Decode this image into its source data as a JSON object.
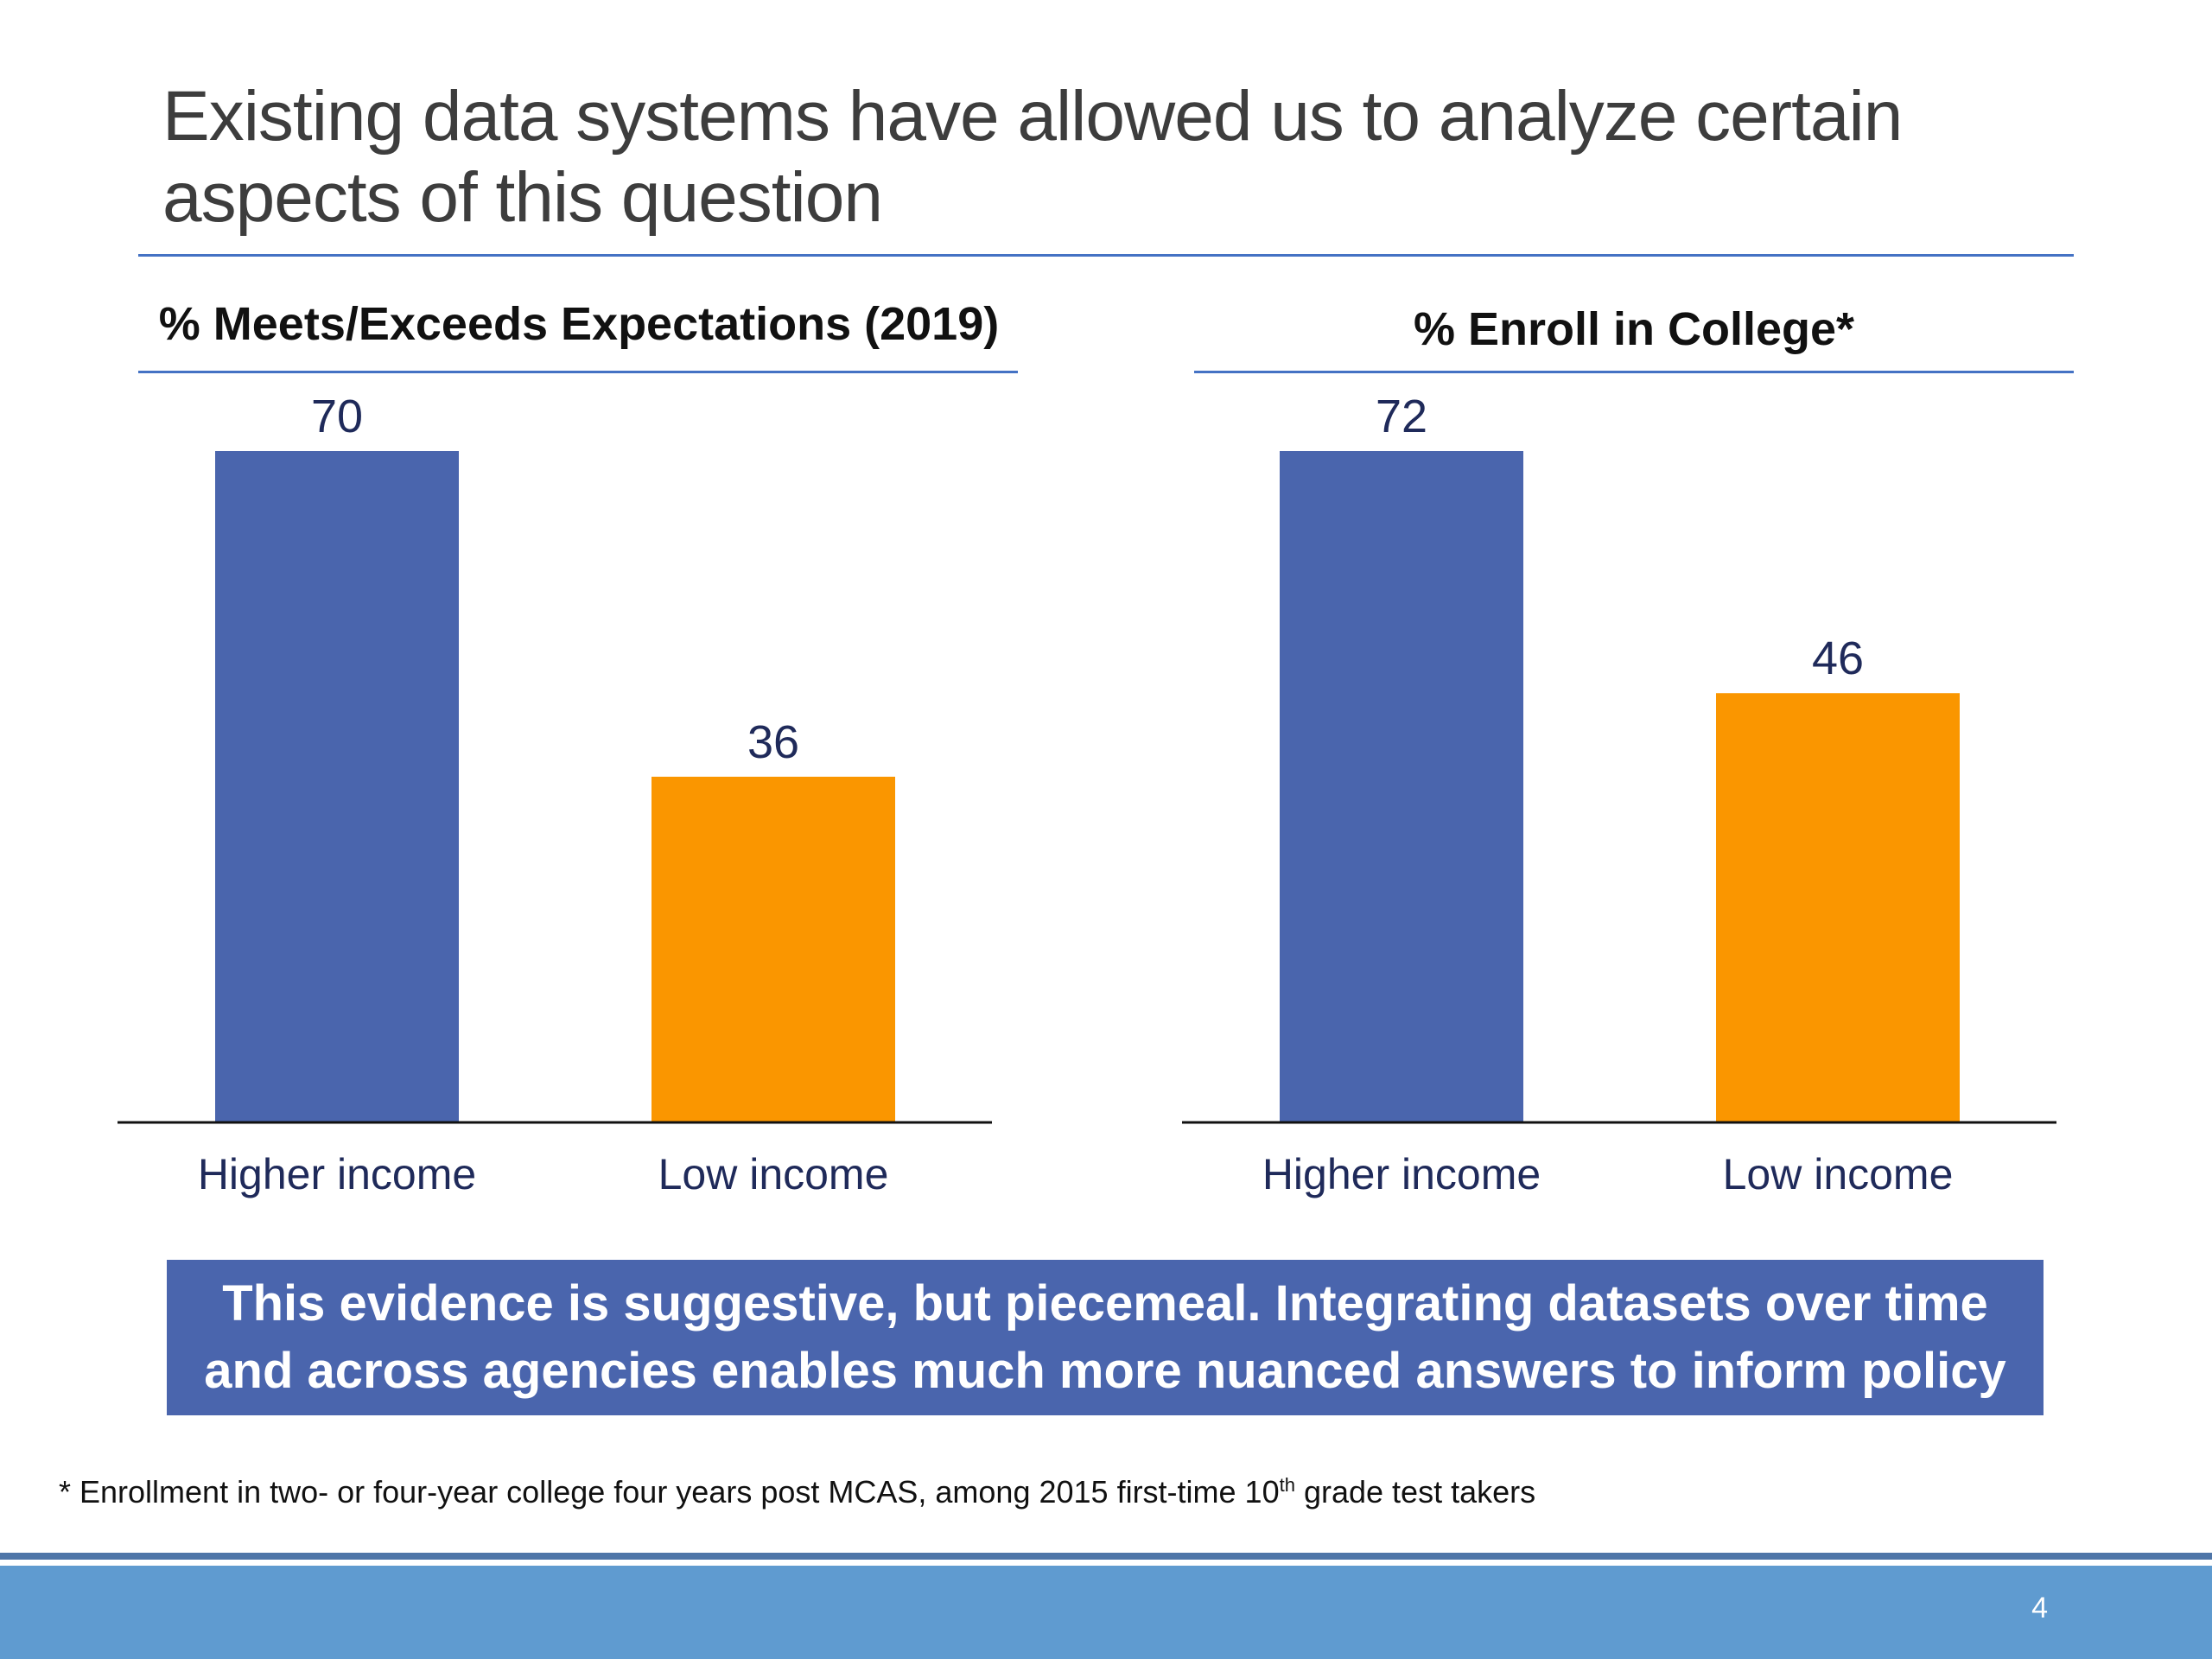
{
  "slide": {
    "title": "Existing data systems have allowed us to analyze certain aspects of this question",
    "callout": "This evidence is suggestive, but piecemeal. Integrating datasets over time and across agencies enables much more nuanced answers to inform policy",
    "footnote": {
      "prefix": "* Enrollment in two- or four-year college four years post MCAS, among 2015 first-time 10",
      "superscript": "th",
      "suffix": " grade test takers"
    },
    "page_number": "4"
  },
  "colors": {
    "higher_income": "#4a65ad",
    "low_income": "#fa9600",
    "accent_rule": "#4472c4",
    "footer_band": "#5f9bd0",
    "footer_line": "#4f76a8"
  },
  "chart_data": [
    {
      "type": "bar",
      "title": "% Meets/Exceeds Expectations (2019)",
      "categories": [
        "Higher income",
        "Low income"
      ],
      "values": [
        70,
        36
      ],
      "bar_colors": [
        "#4a65ad",
        "#fa9600"
      ],
      "data_labels": true,
      "ylim": [
        0,
        70
      ],
      "grid": false,
      "legend": "none"
    },
    {
      "type": "bar",
      "title": "% Enroll in College*",
      "categories": [
        "Higher income",
        "Low income"
      ],
      "values": [
        72,
        46
      ],
      "bar_colors": [
        "#4a65ad",
        "#fa9600"
      ],
      "data_labels": true,
      "ylim": [
        0,
        72
      ],
      "grid": false,
      "legend": "none"
    }
  ]
}
